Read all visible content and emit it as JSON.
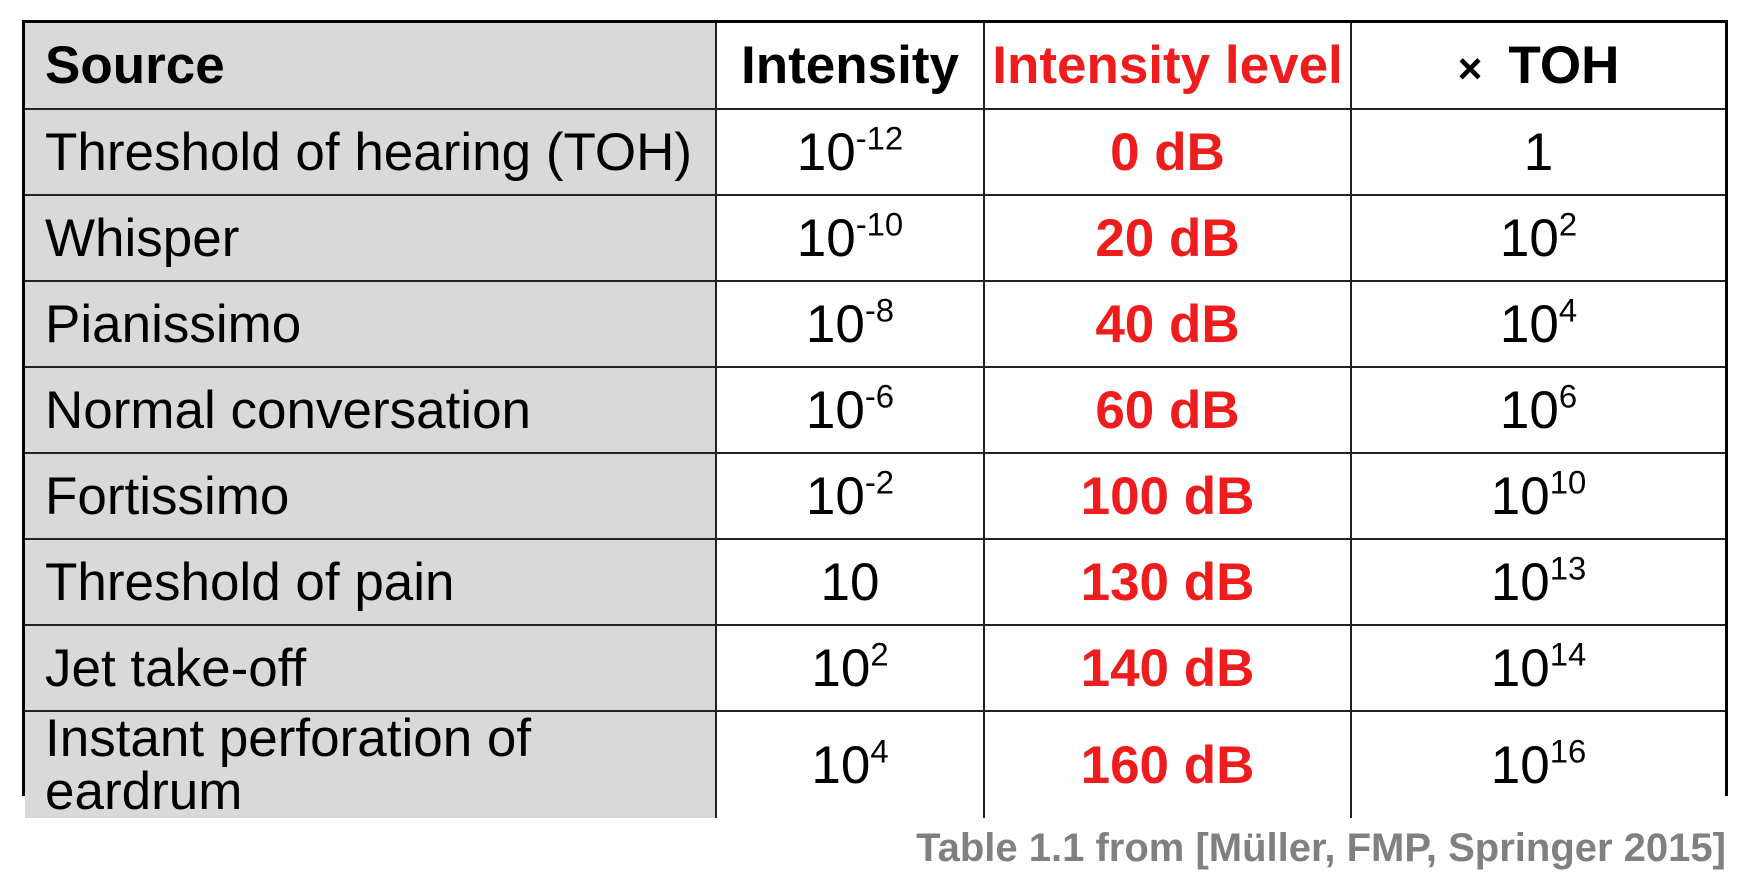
{
  "table": {
    "headers": {
      "source": "Source",
      "intensity": "Intensity",
      "intensity_level": "Intensity level",
      "toh_symbol": "×",
      "toh": "TOH"
    },
    "rows": [
      {
        "source": "Threshold of hearing (TOH)",
        "intensity_base": "10",
        "intensity_exp": "-12",
        "level": "0 dB",
        "toh_base": "1",
        "toh_exp": ""
      },
      {
        "source": "Whisper",
        "intensity_base": "10",
        "intensity_exp": "-10",
        "level": "20 dB",
        "toh_base": "10",
        "toh_exp": "2"
      },
      {
        "source": "Pianissimo",
        "intensity_base": "10",
        "intensity_exp": "-8",
        "level": "40 dB",
        "toh_base": "10",
        "toh_exp": "4"
      },
      {
        "source": "Normal conversation",
        "intensity_base": "10",
        "intensity_exp": "-6",
        "level": "60 dB",
        "toh_base": "10",
        "toh_exp": "6"
      },
      {
        "source": "Fortissimo",
        "intensity_base": "10",
        "intensity_exp": "-2",
        "level": "100 dB",
        "toh_base": "10",
        "toh_exp": "10"
      },
      {
        "source": "Threshold of pain",
        "intensity_base": "10",
        "intensity_exp": "",
        "level": "130 dB",
        "toh_base": "10",
        "toh_exp": "13"
      },
      {
        "source": "Jet take-off",
        "intensity_base": "10",
        "intensity_exp": "2",
        "level": "140 dB",
        "toh_base": "10",
        "toh_exp": "14"
      },
      {
        "source": "Instant perforation of eardrum",
        "intensity_base": "10",
        "intensity_exp": "4",
        "level": "160 dB",
        "toh_base": "10",
        "toh_exp": "16"
      }
    ]
  },
  "caption": "Table 1.1 from [Müller, FMP, Springer 2015]",
  "colors": {
    "level_red": "#ee1c1c",
    "source_column_gray": "#d9d9d9",
    "caption_gray": "#808080"
  }
}
